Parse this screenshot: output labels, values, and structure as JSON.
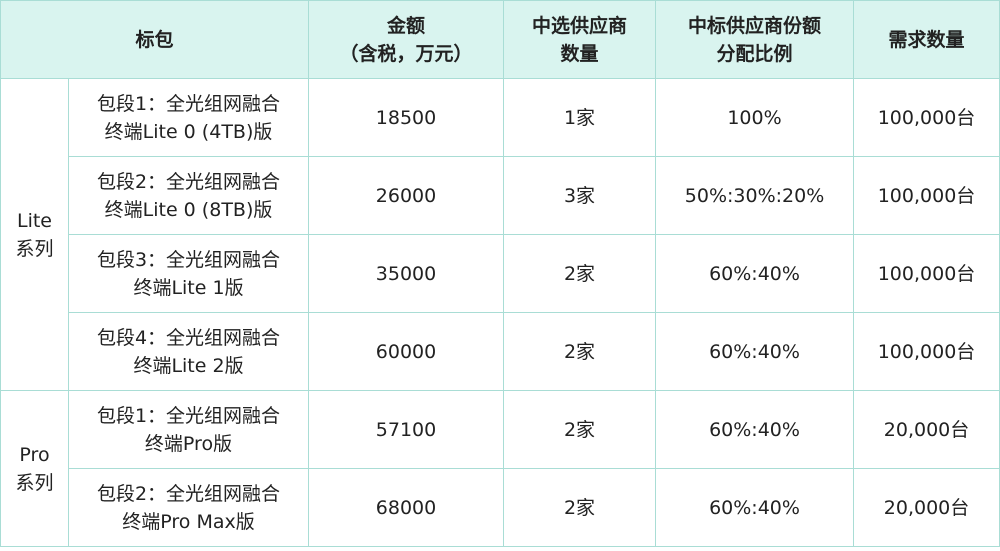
{
  "table": {
    "header": [
      [
        "标包"
      ],
      [
        "金额",
        "（含税，万元）"
      ],
      [
        "中选供应商",
        "数量"
      ],
      [
        "中标供应商份额",
        "分配比例"
      ],
      [
        "需求数量"
      ]
    ],
    "groups": [
      {
        "label": [
          "Lite",
          "系列"
        ],
        "rows": [
          {
            "package": [
              "包段1：全光组网融合",
              "终端Lite 0 (4TB)版"
            ],
            "amount": 18500,
            "suppliers": "1家",
            "ratio": "100%",
            "quantity": "100,000台"
          },
          {
            "package": [
              "包段2：全光组网融合",
              "终端Lite 0 (8TB)版"
            ],
            "amount": 26000,
            "suppliers": "3家",
            "ratio": "50%:30%:20%",
            "quantity": "100,000台"
          },
          {
            "package": [
              "包段3：全光组网融合",
              "终端Lite 1版"
            ],
            "amount": 35000,
            "suppliers": "2家",
            "ratio": "60%:40%",
            "quantity": "100,000台"
          },
          {
            "package": [
              "包段4：全光组网融合",
              "终端Lite 2版"
            ],
            "amount": 60000,
            "suppliers": "2家",
            "ratio": "60%:40%",
            "quantity": "100,000台"
          }
        ]
      },
      {
        "label": [
          "Pro",
          "系列"
        ],
        "rows": [
          {
            "package": [
              "包段1：全光组网融合",
              "终端Pro版"
            ],
            "amount": 57100,
            "suppliers": "2家",
            "ratio": "60%:40%",
            "quantity": "20,000台"
          },
          {
            "package": [
              "包段2：全光组网融合",
              "终端Pro Max版"
            ],
            "amount": 68000,
            "suppliers": "2家",
            "ratio": "60%:40%",
            "quantity": "20,000台"
          }
        ]
      }
    ]
  }
}
